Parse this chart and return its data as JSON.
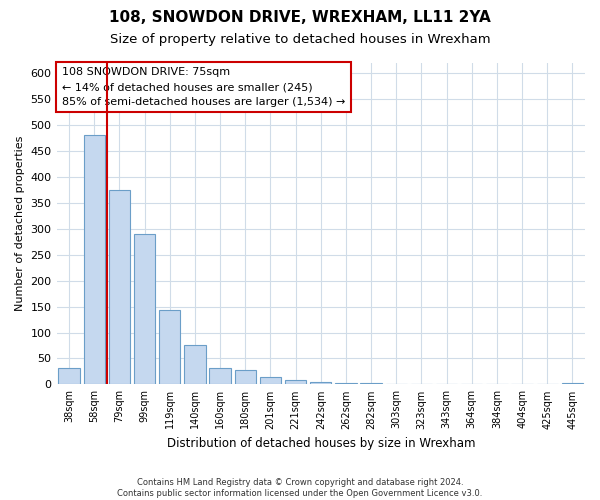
{
  "title_line1": "108, SNOWDON DRIVE, WREXHAM, LL11 2YA",
  "title_line2": "Size of property relative to detached houses in Wrexham",
  "xlabel": "Distribution of detached houses by size in Wrexham",
  "ylabel": "Number of detached properties",
  "bar_heights": [
    32,
    480,
    375,
    290,
    143,
    75,
    32,
    28,
    15,
    8,
    4,
    2,
    2,
    1,
    1,
    1,
    0,
    0,
    0,
    0,
    3
  ],
  "bar_labels": [
    "38sqm",
    "58sqm",
    "79sqm",
    "99sqm",
    "119sqm",
    "140sqm",
    "160sqm",
    "180sqm",
    "201sqm",
    "221sqm",
    "242sqm",
    "262sqm",
    "282sqm",
    "303sqm",
    "323sqm",
    "343sqm",
    "364sqm",
    "384sqm",
    "404sqm",
    "425sqm",
    "445sqm"
  ],
  "bar_color": "#c5d8ef",
  "bar_edge_color": "#6b9ec8",
  "vline_x": 1.5,
  "vline_color": "#cc0000",
  "annotation_text": "108 SNOWDON DRIVE: 75sqm\n← 14% of detached houses are smaller (245)\n85% of semi-detached houses are larger (1,534) →",
  "ylim_max": 620,
  "yticks": [
    0,
    50,
    100,
    150,
    200,
    250,
    300,
    350,
    400,
    450,
    500,
    550,
    600
  ],
  "bg_color": "#ffffff",
  "grid_color": "#d0dce8",
  "footer": "Contains HM Land Registry data © Crown copyright and database right 2024.\nContains public sector information licensed under the Open Government Licence v3.0."
}
